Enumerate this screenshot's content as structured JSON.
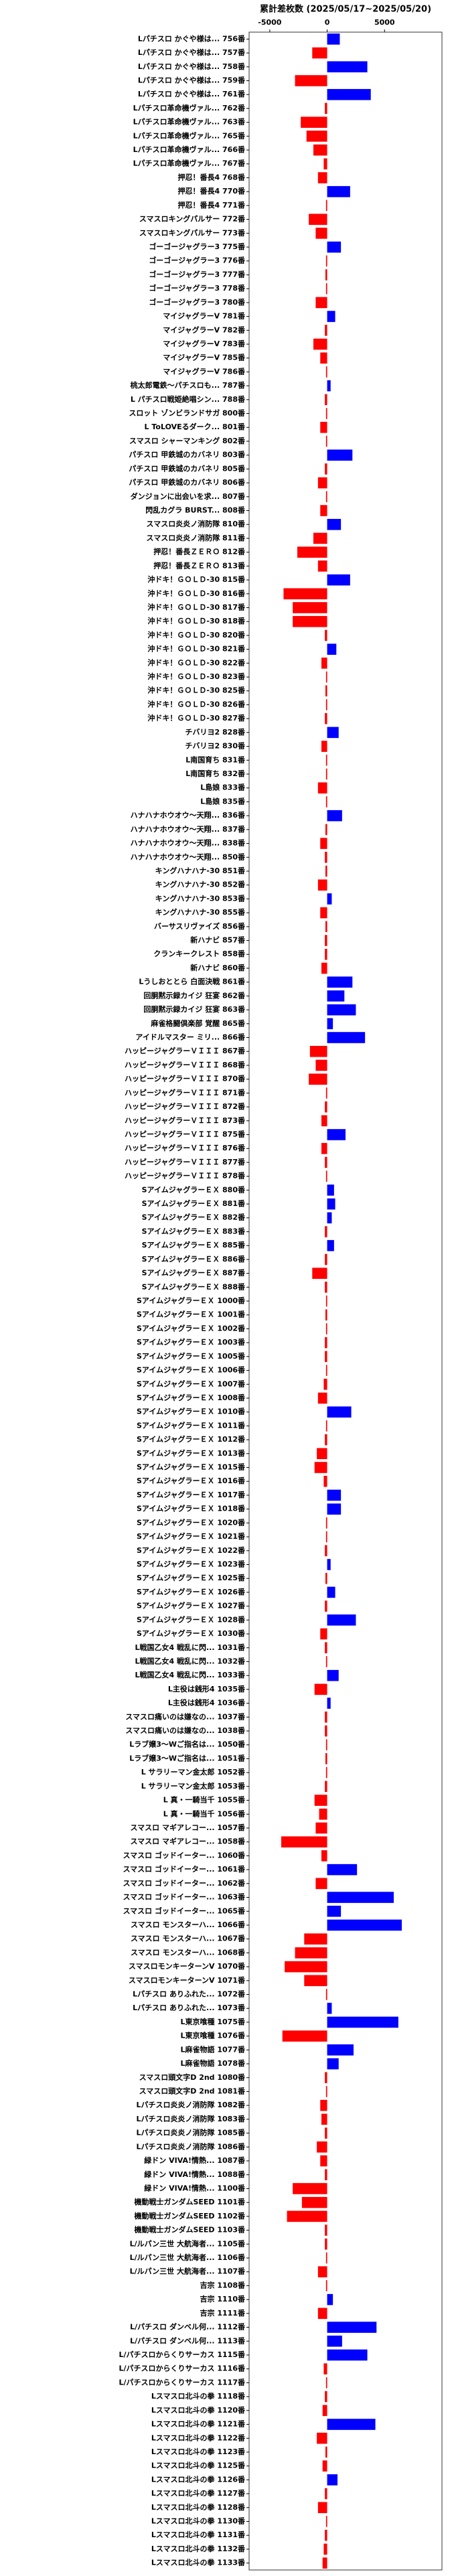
{
  "chart_data": {
    "type": "barh",
    "title": "累計差枚数 (2025/05/17~2025/05/20)",
    "categories": [
      "Lパチスロ かぐや様は... 756番",
      "Lパチスロ かぐや様は... 757番",
      "Lパチスロ かぐや様は... 758番",
      "Lパチスロ かぐや様は... 759番",
      "Lパチスロ かぐや様は... 761番",
      "Lパチスロ革命機ヴァル... 762番",
      "Lパチスロ革命機ヴァル... 763番",
      "Lパチスロ革命機ヴァル... 765番",
      "Lパチスロ革命機ヴァル... 766番",
      "Lパチスロ革命機ヴァル... 767番",
      "押忍！番長4 768番",
      "押忍！番長4 770番",
      "押忍！番長4 771番",
      "スマスロキングパルサー 772番",
      "スマスロキングパルサー 773番",
      "ゴーゴージャグラー3 775番",
      "ゴーゴージャグラー3 776番",
      "ゴーゴージャグラー3 777番",
      "ゴーゴージャグラー3 778番",
      "ゴーゴージャグラー3 780番",
      "マイジャグラーV 781番",
      "マイジャグラーV 782番",
      "マイジャグラーV 783番",
      "マイジャグラーV 785番",
      "マイジャグラーV 786番",
      "桃太郎電鉄〜パチスロも... 787番",
      "L パチスロ戦姫絶唱シン... 788番",
      "スロット ゾンビランドサガ 800番",
      "L ToLOVEるダーク... 801番",
      "スマスロ シャーマンキング 802番",
      "パチスロ 甲鉄城のカバネリ 803番",
      "パチスロ 甲鉄城のカバネリ 805番",
      "パチスロ 甲鉄城のカバネリ 806番",
      "ダンジョンに出会いを求... 807番",
      "閃乱カグラ BURST... 808番",
      "スマスロ炎炎ノ消防隊 810番",
      "スマスロ炎炎ノ消防隊 811番",
      "押忍！番長ＺＥＲＯ 812番",
      "押忍！番長ＺＥＲＯ 813番",
      "沖ドキ！ＧＯＬＤ-30 815番",
      "沖ドキ！ＧＯＬＤ-30 816番",
      "沖ドキ！ＧＯＬＤ-30 817番",
      "沖ドキ！ＧＯＬＤ-30 818番",
      "沖ドキ！ＧＯＬＤ-30 820番",
      "沖ドキ！ＧＯＬＤ-30 821番",
      "沖ドキ！ＧＯＬＤ-30 822番",
      "沖ドキ！ＧＯＬＤ-30 823番",
      "沖ドキ！ＧＯＬＤ-30 825番",
      "沖ドキ！ＧＯＬＤ-30 826番",
      "沖ドキ！ＧＯＬＤ-30 827番",
      "チバリヨ2 828番",
      "チバリヨ2 830番",
      "L南国育ち 831番",
      "L南国育ち 832番",
      "L島娘 833番",
      "L島娘 835番",
      "ハナハナホウオウ〜天翔... 836番",
      "ハナハナホウオウ〜天翔... 837番",
      "ハナハナホウオウ〜天翔... 838番",
      "ハナハナホウオウ〜天翔... 850番",
      "キングハナハナ-30 851番",
      "キングハナハナ-30 852番",
      "キングハナハナ-30 853番",
      "キングハナハナ-30 855番",
      "バーサスリヴァイズ 856番",
      "新ハナビ 857番",
      "クランキークレスト 858番",
      "新ハナビ 860番",
      "Lうしおととら 白面決戦 861番",
      "回胴黙示録カイジ 狂宴 862番",
      "回胴黙示録カイジ 狂宴 863番",
      "麻雀格闘倶楽部 覚醒 865番",
      "アイドルマスター ミリ... 866番",
      "ハッピージャグラーＶＩＩＩ 867番",
      "ハッピージャグラーＶＩＩＩ 868番",
      "ハッピージャグラーＶＩＩＩ 870番",
      "ハッピージャグラーＶＩＩＩ 871番",
      "ハッピージャグラーＶＩＩＩ 872番",
      "ハッピージャグラーＶＩＩＩ 873番",
      "ハッピージャグラーＶＩＩＩ 875番",
      "ハッピージャグラーＶＩＩＩ 876番",
      "ハッピージャグラーＶＩＩＩ 877番",
      "ハッピージャグラーＶＩＩＩ 878番",
      "SアイムジャグラーＥＸ 880番",
      "SアイムジャグラーＥＸ 881番",
      "SアイムジャグラーＥＸ 882番",
      "SアイムジャグラーＥＸ 883番",
      "SアイムジャグラーＥＸ 885番",
      "SアイムジャグラーＥＸ 886番",
      "SアイムジャグラーＥＸ 887番",
      "SアイムジャグラーＥＸ 888番",
      "SアイムジャグラーＥＸ 1000番",
      "SアイムジャグラーＥＸ 1001番",
      "SアイムジャグラーＥＸ 1002番",
      "SアイムジャグラーＥＸ 1003番",
      "SアイムジャグラーＥＸ 1005番",
      "SアイムジャグラーＥＸ 1006番",
      "SアイムジャグラーＥＸ 1007番",
      "SアイムジャグラーＥＸ 1008番",
      "SアイムジャグラーＥＸ 1010番",
      "SアイムジャグラーＥＸ 1011番",
      "SアイムジャグラーＥＸ 1012番",
      "SアイムジャグラーＥＸ 1013番",
      "SアイムジャグラーＥＸ 1015番",
      "SアイムジャグラーＥＸ 1016番",
      "SアイムジャグラーＥＸ 1017番",
      "SアイムジャグラーＥＸ 1018番",
      "SアイムジャグラーＥＸ 1020番",
      "SアイムジャグラーＥＸ 1021番",
      "SアイムジャグラーＥＸ 1022番",
      "SアイムジャグラーＥＸ 1023番",
      "SアイムジャグラーＥＸ 1025番",
      "SアイムジャグラーＥＸ 1026番",
      "SアイムジャグラーＥＸ 1027番",
      "SアイムジャグラーＥＸ 1028番",
      "SアイムジャグラーＥＸ 1030番",
      "L戦国乙女4 戦乱に閃... 1031番",
      "L戦国乙女4 戦乱に閃... 1032番",
      "L戦国乙女4 戦乱に閃... 1033番",
      "L主役は銭形4 1035番",
      "L主役は銭形4 1036番",
      "スマスロ痛いのは嫌なの... 1037番",
      "スマスロ痛いのは嫌なの... 1038番",
      "Lラブ嬢3〜Wご指名は... 1050番",
      "Lラブ嬢3〜Wご指名は... 1051番",
      "L サラリーマン金太郎 1052番",
      "L サラリーマン金太郎 1053番",
      "L 真・一騎当千 1055番",
      "L 真・一騎当千 1056番",
      "スマスロ マギアレコー... 1057番",
      "スマスロ マギアレコー... 1058番",
      "スマスロ ゴッドイーター... 1060番",
      "スマスロ ゴッドイーター... 1061番",
      "スマスロ ゴッドイーター... 1062番",
      "スマスロ ゴッドイーター... 1063番",
      "スマスロ ゴッドイーター... 1065番",
      "スマスロ モンスターハ... 1066番",
      "スマスロ モンスターハ... 1067番",
      "スマスロ モンスターハ... 1068番",
      "スマスロモンキーターンV 1070番",
      "スマスロモンキーターンV 1071番",
      "Lパチスロ ありふれた... 1072番",
      "Lパチスロ ありふれた... 1073番",
      "L東京喰種 1075番",
      "L東京喰種 1076番",
      "L麻雀物語 1077番",
      "L麻雀物語 1078番",
      "スマスロ頭文字D 2nd 1080番",
      "スマスロ頭文字D 2nd 1081番",
      "Lパチスロ炎炎ノ消防隊 1082番",
      "Lパチスロ炎炎ノ消防隊 1083番",
      "Lパチスロ炎炎ノ消防隊 1085番",
      "Lパチスロ炎炎ノ消防隊 1086番",
      "緑ドン VIVA!情熱... 1087番",
      "緑ドン VIVA!情熱... 1088番",
      "緑ドン VIVA!情熱... 1100番",
      "機動戦士ガンダムSEED 1101番",
      "機動戦士ガンダムSEED 1102番",
      "機動戦士ガンダムSEED 1103番",
      "L/ルパン三世 大航海者... 1105番",
      "L/ルパン三世 大航海者... 1106番",
      "L/ルパン三世 大航海者... 1107番",
      "吉宗 1108番",
      "吉宗 1110番",
      "吉宗 1111番",
      "L/パチスロ ダンベル何... 1112番",
      "L/パチスロ ダンベル何... 1113番",
      "L/パチスロからくりサーカス 1115番",
      "L/パチスロからくりサーカス 1116番",
      "L/パチスロからくりサーカス 1117番",
      "Lスマスロ北斗の拳 1118番",
      "Lスマスロ北斗の拳 1120番",
      "Lスマスロ北斗の拳 1121番",
      "Lスマスロ北斗の拳 1122番",
      "Lスマスロ北斗の拳 1123番",
      "Lスマスロ北斗の拳 1125番",
      "Lスマスロ北斗の拳 1126番",
      "Lスマスロ北斗の拳 1127番",
      "Lスマスロ北斗の拳 1128番",
      "Lスマスロ北斗の拳 1130番",
      "Lスマスロ北斗の拳 1131番",
      "Lスマスロ北斗の拳 1132番",
      "Lスマスロ北斗の拳 1133番"
    ],
    "values": [
      1100,
      -1300,
      3500,
      -2800,
      3800,
      -200,
      -2300,
      -1800,
      -1200,
      -300,
      -800,
      2000,
      -100,
      -1600,
      -1000,
      1200,
      -100,
      -150,
      -100,
      -1000,
      700,
      -200,
      -1200,
      -600,
      -100,
      300,
      -200,
      -100,
      -600,
      -100,
      2200,
      -200,
      -800,
      -100,
      -600,
      1200,
      -1200,
      -2600,
      -800,
      2000,
      -3800,
      -3000,
      -3000,
      -200,
      800,
      -500,
      -100,
      -150,
      -100,
      -200,
      1000,
      -500,
      -100,
      -100,
      -800,
      -100,
      1300,
      -150,
      -600,
      -200,
      -150,
      -800,
      400,
      -600,
      -150,
      -200,
      -200,
      -500,
      2200,
      1500,
      2500,
      500,
      3300,
      -1500,
      -1000,
      -1600,
      -100,
      -200,
      -500,
      1600,
      -500,
      -200,
      -100,
      600,
      700,
      400,
      -200,
      600,
      -200,
      -1300,
      -200,
      -100,
      -150,
      -100,
      -200,
      -200,
      -100,
      -300,
      -800,
      2100,
      -100,
      -200,
      -900,
      -1100,
      -300,
      1200,
      1200,
      -100,
      -100,
      -200,
      300,
      -150,
      700,
      -200,
      2500,
      -600,
      -200,
      -100,
      1000,
      -1100,
      300,
      -200,
      -200,
      -100,
      -150,
      -100,
      -200,
      -1100,
      -700,
      -1000,
      -4000,
      -500,
      2600,
      -1000,
      5800,
      1200,
      6500,
      -2000,
      -2800,
      -3700,
      -2000,
      -100,
      400,
      6200,
      -3900,
      2300,
      1000,
      -200,
      -100,
      -600,
      -500,
      -200,
      -900,
      -600,
      -200,
      -3000,
      -2200,
      -3500,
      -200,
      -200,
      -100,
      -800,
      -100,
      500,
      -800,
      4300,
      1300,
      3500,
      -300,
      -100,
      -200,
      -400,
      4200,
      -900,
      -150,
      -400,
      900,
      -200,
      -800,
      -100,
      -200,
      -300,
      -400
    ],
    "colors": {
      "positive": "#0000ff",
      "negative": "#ff0000"
    },
    "xlim": [
      -6800,
      10000
    ],
    "xticks": [
      -5000,
      0,
      5000
    ]
  }
}
